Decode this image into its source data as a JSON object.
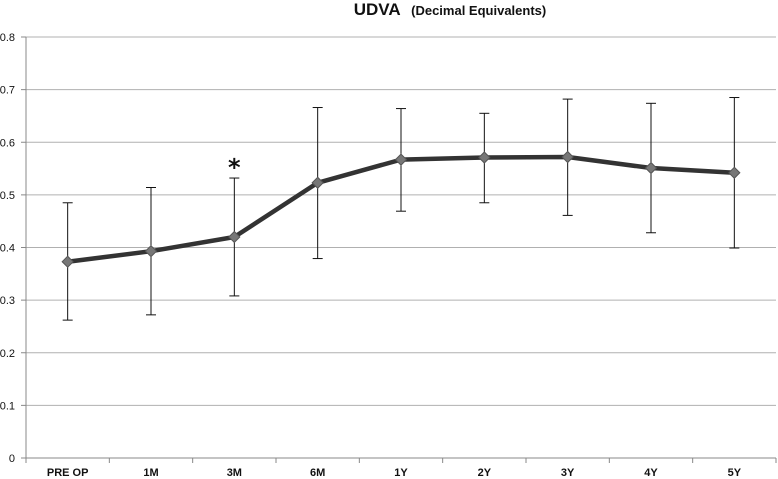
{
  "chart_data": {
    "type": "line",
    "title": "UDVA",
    "subtitle": "(Decimal Equivalents)",
    "xlabel": "",
    "ylabel": "",
    "ylim": [
      0,
      0.8
    ],
    "yticks": [
      0,
      0.1,
      0.2,
      0.3,
      0.4,
      0.5,
      0.6,
      0.7,
      0.8
    ],
    "ytick_labels": [
      "0",
      "0.1",
      "0.2",
      "0.3",
      "0.4",
      "0.5",
      "0.6",
      "0.7",
      "0.8"
    ],
    "categories": [
      "PRE OP",
      "1M",
      "3M",
      "6M",
      "1Y",
      "2Y",
      "3Y",
      "4Y",
      "5Y"
    ],
    "series": [
      {
        "values": [
          0.373,
          0.393,
          0.42,
          0.523,
          0.567,
          0.571,
          0.572,
          0.551,
          0.542
        ],
        "error_low": [
          0.262,
          0.272,
          0.308,
          0.379,
          0.469,
          0.485,
          0.461,
          0.428,
          0.399
        ],
        "error_high": [
          0.485,
          0.514,
          0.532,
          0.666,
          0.664,
          0.655,
          0.682,
          0.674,
          0.685
        ]
      }
    ],
    "annotations": [
      {
        "text": "*",
        "category": "3M",
        "y": 0.56
      }
    ],
    "grid": true,
    "legend": "none",
    "colors": {
      "line": "#333333",
      "marker": "#777777",
      "grid": "#b0b0b0",
      "axis": "#888888",
      "error_bar": "#111111"
    }
  }
}
